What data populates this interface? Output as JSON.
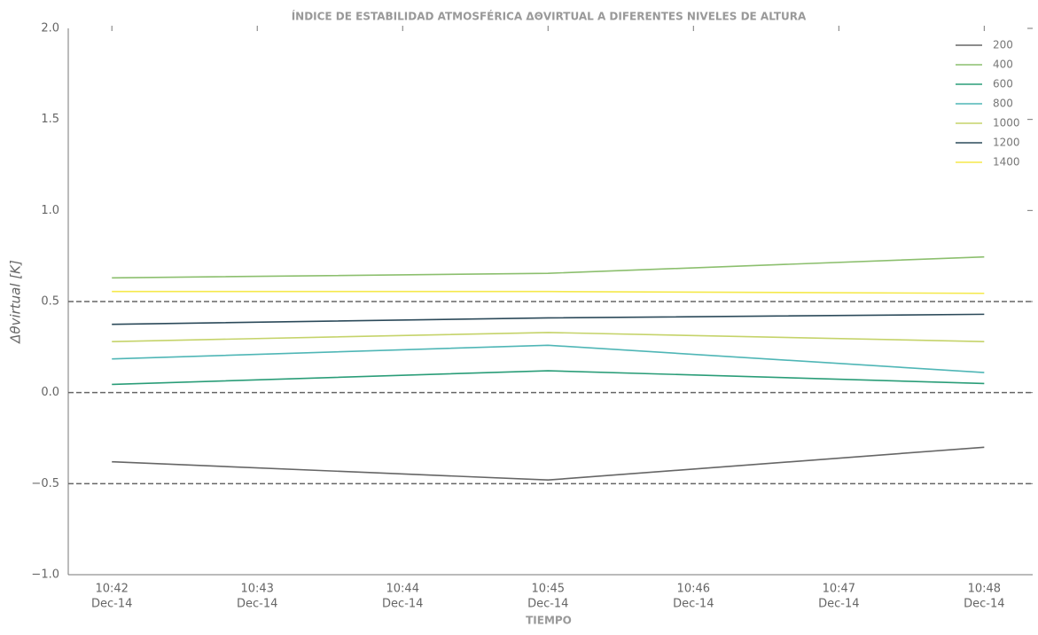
{
  "chart_data": {
    "type": "line",
    "title": "ÍNDICE DE ESTABILIDAD ATMOSFÉRICA ΔΘVIRTUAL A DIFERENTES NIVELES DE ALTURA",
    "xlabel": "TIEMPO",
    "ylabel": "Δθvirtual [K]",
    "x": [
      "10:42:00",
      "10:45:00",
      "10:48:00"
    ],
    "xlim": [
      "10:41:42",
      "10:48:20"
    ],
    "xticks": [
      {
        "value": "10:42:00",
        "time": "10:42",
        "date": "Dec-14"
      },
      {
        "value": "10:43:00",
        "time": "10:43",
        "date": "Dec-14"
      },
      {
        "value": "10:44:00",
        "time": "10:44",
        "date": "Dec-14"
      },
      {
        "value": "10:45:00",
        "time": "10:45",
        "date": "Dec-14"
      },
      {
        "value": "10:46:00",
        "time": "10:46",
        "date": "Dec-14"
      },
      {
        "value": "10:47:00",
        "time": "10:47",
        "date": "Dec-14"
      },
      {
        "value": "10:48:00",
        "time": "10:48",
        "date": "Dec-14"
      }
    ],
    "ylim": [
      -1.0,
      2.0
    ],
    "yticks": [
      {
        "value": -1,
        "label": "−1.0"
      },
      {
        "value": -0.5,
        "label": "−0.5"
      },
      {
        "value": 0,
        "label": "0.0"
      },
      {
        "value": 0.5,
        "label": "0.5"
      },
      {
        "value": 1,
        "label": "1.0"
      },
      {
        "value": 1.5,
        "label": "1.5"
      },
      {
        "value": 2,
        "label": "2.0"
      }
    ],
    "hlines": [
      -0.5,
      0,
      0.5
    ],
    "legend": "upper right",
    "series": [
      {
        "name": "200",
        "color": "#666666",
        "values": [
          -0.38,
          -0.48,
          -0.3
        ]
      },
      {
        "name": "400",
        "color": "#8cbf6e",
        "values": [
          0.63,
          0.655,
          0.745
        ]
      },
      {
        "name": "600",
        "color": "#2a9d78",
        "values": [
          0.045,
          0.12,
          0.05
        ]
      },
      {
        "name": "800",
        "color": "#4fb6b6",
        "values": [
          0.185,
          0.26,
          0.11
        ]
      },
      {
        "name": "1000",
        "color": "#c5d36a",
        "values": [
          0.28,
          0.33,
          0.28
        ]
      },
      {
        "name": "1200",
        "color": "#2c4a5a",
        "values": [
          0.375,
          0.41,
          0.43
        ]
      },
      {
        "name": "1400",
        "color": "#f5e94a",
        "values": [
          0.555,
          0.555,
          0.545
        ]
      }
    ]
  }
}
